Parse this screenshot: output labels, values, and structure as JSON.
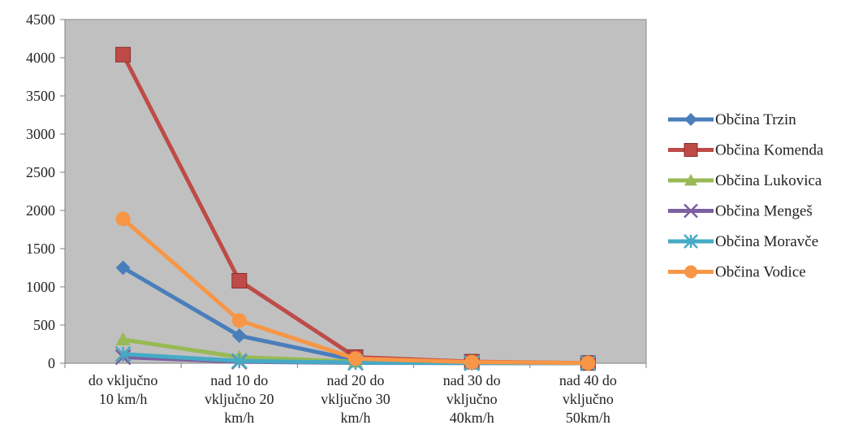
{
  "chart_data": {
    "type": "line",
    "categories": [
      [
        "do vključno",
        "10 km/h"
      ],
      [
        "nad 10 do",
        "vključno 20",
        "km/h"
      ],
      [
        "nad 20 do",
        "vključno 30",
        "km/h"
      ],
      [
        "nad 30 do",
        "vključno",
        "40km/h"
      ],
      [
        "nad 40 do",
        "vključno",
        "50km/h"
      ]
    ],
    "ylim": [
      0,
      4500
    ],
    "yticks": [
      0,
      500,
      1000,
      1500,
      2000,
      2500,
      3000,
      3500,
      4000,
      4500
    ],
    "grid": false,
    "legend_position": "right",
    "series": [
      {
        "name": "Občina Trzin",
        "color": "#4a7ebb",
        "marker": "diamond",
        "values": [
          1250,
          360,
          40,
          10,
          2
        ]
      },
      {
        "name": "Občina Komenda",
        "color": "#be4b48",
        "marker": "square",
        "values": [
          4040,
          1080,
          80,
          20,
          3
        ]
      },
      {
        "name": "Občina Lukovica",
        "color": "#98b954",
        "marker": "triangle",
        "values": [
          310,
          80,
          20,
          5,
          1
        ]
      },
      {
        "name": "Občina Mengeš",
        "color": "#7d60a0",
        "marker": "x",
        "values": [
          80,
          20,
          5,
          2,
          1
        ]
      },
      {
        "name": "Občina Moravče",
        "color": "#46aac5",
        "marker": "star",
        "values": [
          120,
          30,
          8,
          2,
          1
        ]
      },
      {
        "name": "Občina Vodice",
        "color": "#f79646",
        "marker": "circle",
        "values": [
          1890,
          560,
          60,
          15,
          3
        ]
      }
    ]
  }
}
